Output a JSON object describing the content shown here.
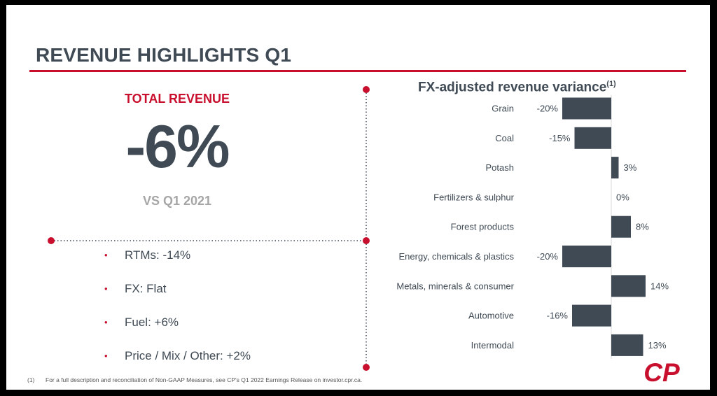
{
  "slide": {
    "title": "REVENUE HIGHLIGHTS Q1"
  },
  "kpi": {
    "label": "TOTAL REVENUE",
    "value": "-6%",
    "comparison": "VS Q1 2021"
  },
  "drivers": [
    {
      "bullet": "•",
      "text": "RTMs: -14%"
    },
    {
      "bullet": "•",
      "text": "FX: Flat"
    },
    {
      "bullet": "•",
      "text": "Fuel: +6%"
    },
    {
      "bullet": "•",
      "text": "Price / Mix / Other: +2%"
    }
  ],
  "footnote": {
    "number": "(1)",
    "text": "For a full description and reconciliation of Non-GAAP Measures, see CP's Q1 2022 Earnings Release on investor.cpr.ca."
  },
  "logo": {
    "text": "CP",
    "color": "#c8102e"
  },
  "colors": {
    "accent_red": "#c8102e",
    "dark_slate": "#3f4a55",
    "gray": "#a6a6a6"
  },
  "chart_data": {
    "type": "bar",
    "orientation": "horizontal",
    "title": "FX-adjusted revenue variance",
    "title_superscript": "(1)",
    "categories": [
      "Grain",
      "Coal",
      "Potash",
      "Fertilizers & sulphur",
      "Forest products",
      "Energy, chemicals & plastics",
      "Metals, minerals & consumer",
      "Automotive",
      "Intermodal"
    ],
    "values": [
      -20,
      -15,
      3,
      0,
      8,
      -20,
      14,
      -16,
      13
    ],
    "data_labels": [
      "-20%",
      "-15%",
      "3%",
      "0%",
      "8%",
      "-20%",
      "14%",
      "-16%",
      "13%"
    ],
    "unit": "%",
    "xlim": [
      -20,
      20
    ],
    "bar_color": "#3f4a55",
    "xlabel": "",
    "ylabel": ""
  }
}
